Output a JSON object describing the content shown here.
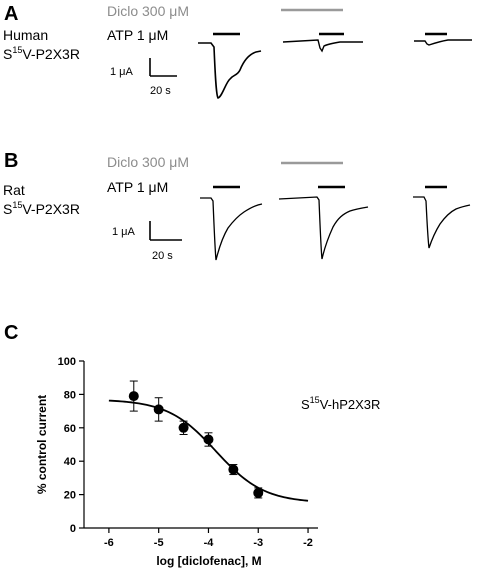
{
  "panelA": {
    "letter": "A",
    "species": "Human",
    "construct_prefix": "S",
    "construct_sup": "15",
    "construct_suffix": "V-P2X3R",
    "diclo_label": "Diclo 300 μM",
    "atp_label": "ATP 1 μM",
    "scale_current": "1 μA",
    "scale_time": "20 s"
  },
  "panelB": {
    "letter": "B",
    "species": "Rat",
    "construct_prefix": "S",
    "construct_sup": "15",
    "construct_suffix": "V-P2X3R",
    "diclo_label": "Diclo 300 μM",
    "atp_label": "ATP 1 μM",
    "scale_current": "1 μA",
    "scale_time": "20 s"
  },
  "panelC": {
    "letter": "C",
    "annotation_prefix": "S",
    "annotation_sup": "15",
    "annotation_suffix": "V-hP2X3R"
  },
  "chart_data": {
    "type": "scatter",
    "xlabel": "log [diclofenac], M",
    "ylabel": "% control current",
    "xlim": [
      -6.5,
      -1.8
    ],
    "ylim": [
      0,
      100
    ],
    "xticks": [
      -6,
      -5,
      -4,
      -3,
      -2
    ],
    "yticks": [
      0,
      20,
      40,
      60,
      80,
      100
    ],
    "points": [
      {
        "x": -5.5,
        "y": 79,
        "err": 9
      },
      {
        "x": -5.0,
        "y": 71,
        "err": 7
      },
      {
        "x": -4.5,
        "y": 60,
        "err": 4
      },
      {
        "x": -4.0,
        "y": 53,
        "err": 4
      },
      {
        "x": -3.5,
        "y": 35,
        "err": 3
      },
      {
        "x": -3.0,
        "y": 21,
        "err": 3
      }
    ],
    "fit": {
      "top": 77,
      "bottom": 15,
      "logIC50": -3.85,
      "hill": 0.9
    }
  }
}
